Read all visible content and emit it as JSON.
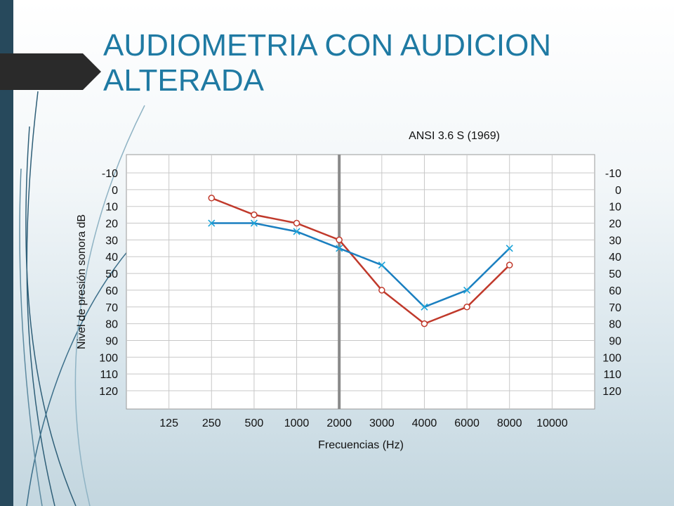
{
  "slide": {
    "title_line1": "AUDIOMETRIA CON AUDICION",
    "title_line2": "ALTERADA",
    "colors": {
      "title": "#1f7aa3",
      "sidebar": "#27495c",
      "tab": "#2a2a2a"
    }
  },
  "chart_data": {
    "type": "line",
    "title": "ANSI 3.6 S (1969)",
    "xlabel": "Frecuencias (Hz)",
    "ylabel": "Nivel de presión sonora dB",
    "categories": [
      "",
      "125",
      "250",
      "500",
      "1000",
      "2000",
      "3000",
      "4000",
      "6000",
      "8000",
      "10000"
    ],
    "y_ticks": [
      -10,
      0,
      10,
      20,
      30,
      40,
      50,
      60,
      70,
      80,
      90,
      100,
      110,
      120
    ],
    "ylim": [
      -10,
      120
    ],
    "y_inverted": true,
    "y_axis_right": true,
    "grid": true,
    "highlight_category": "1000",
    "series": [
      {
        "values": [
          null,
          null,
          5,
          15,
          20,
          30,
          60,
          80,
          70,
          45,
          null
        ],
        "color": "#c0392b",
        "marker": "circle"
      },
      {
        "values": [
          null,
          null,
          20,
          20,
          25,
          35,
          45,
          70,
          60,
          35,
          null
        ],
        "color": "#1a7fc0",
        "marker": "x"
      }
    ]
  }
}
